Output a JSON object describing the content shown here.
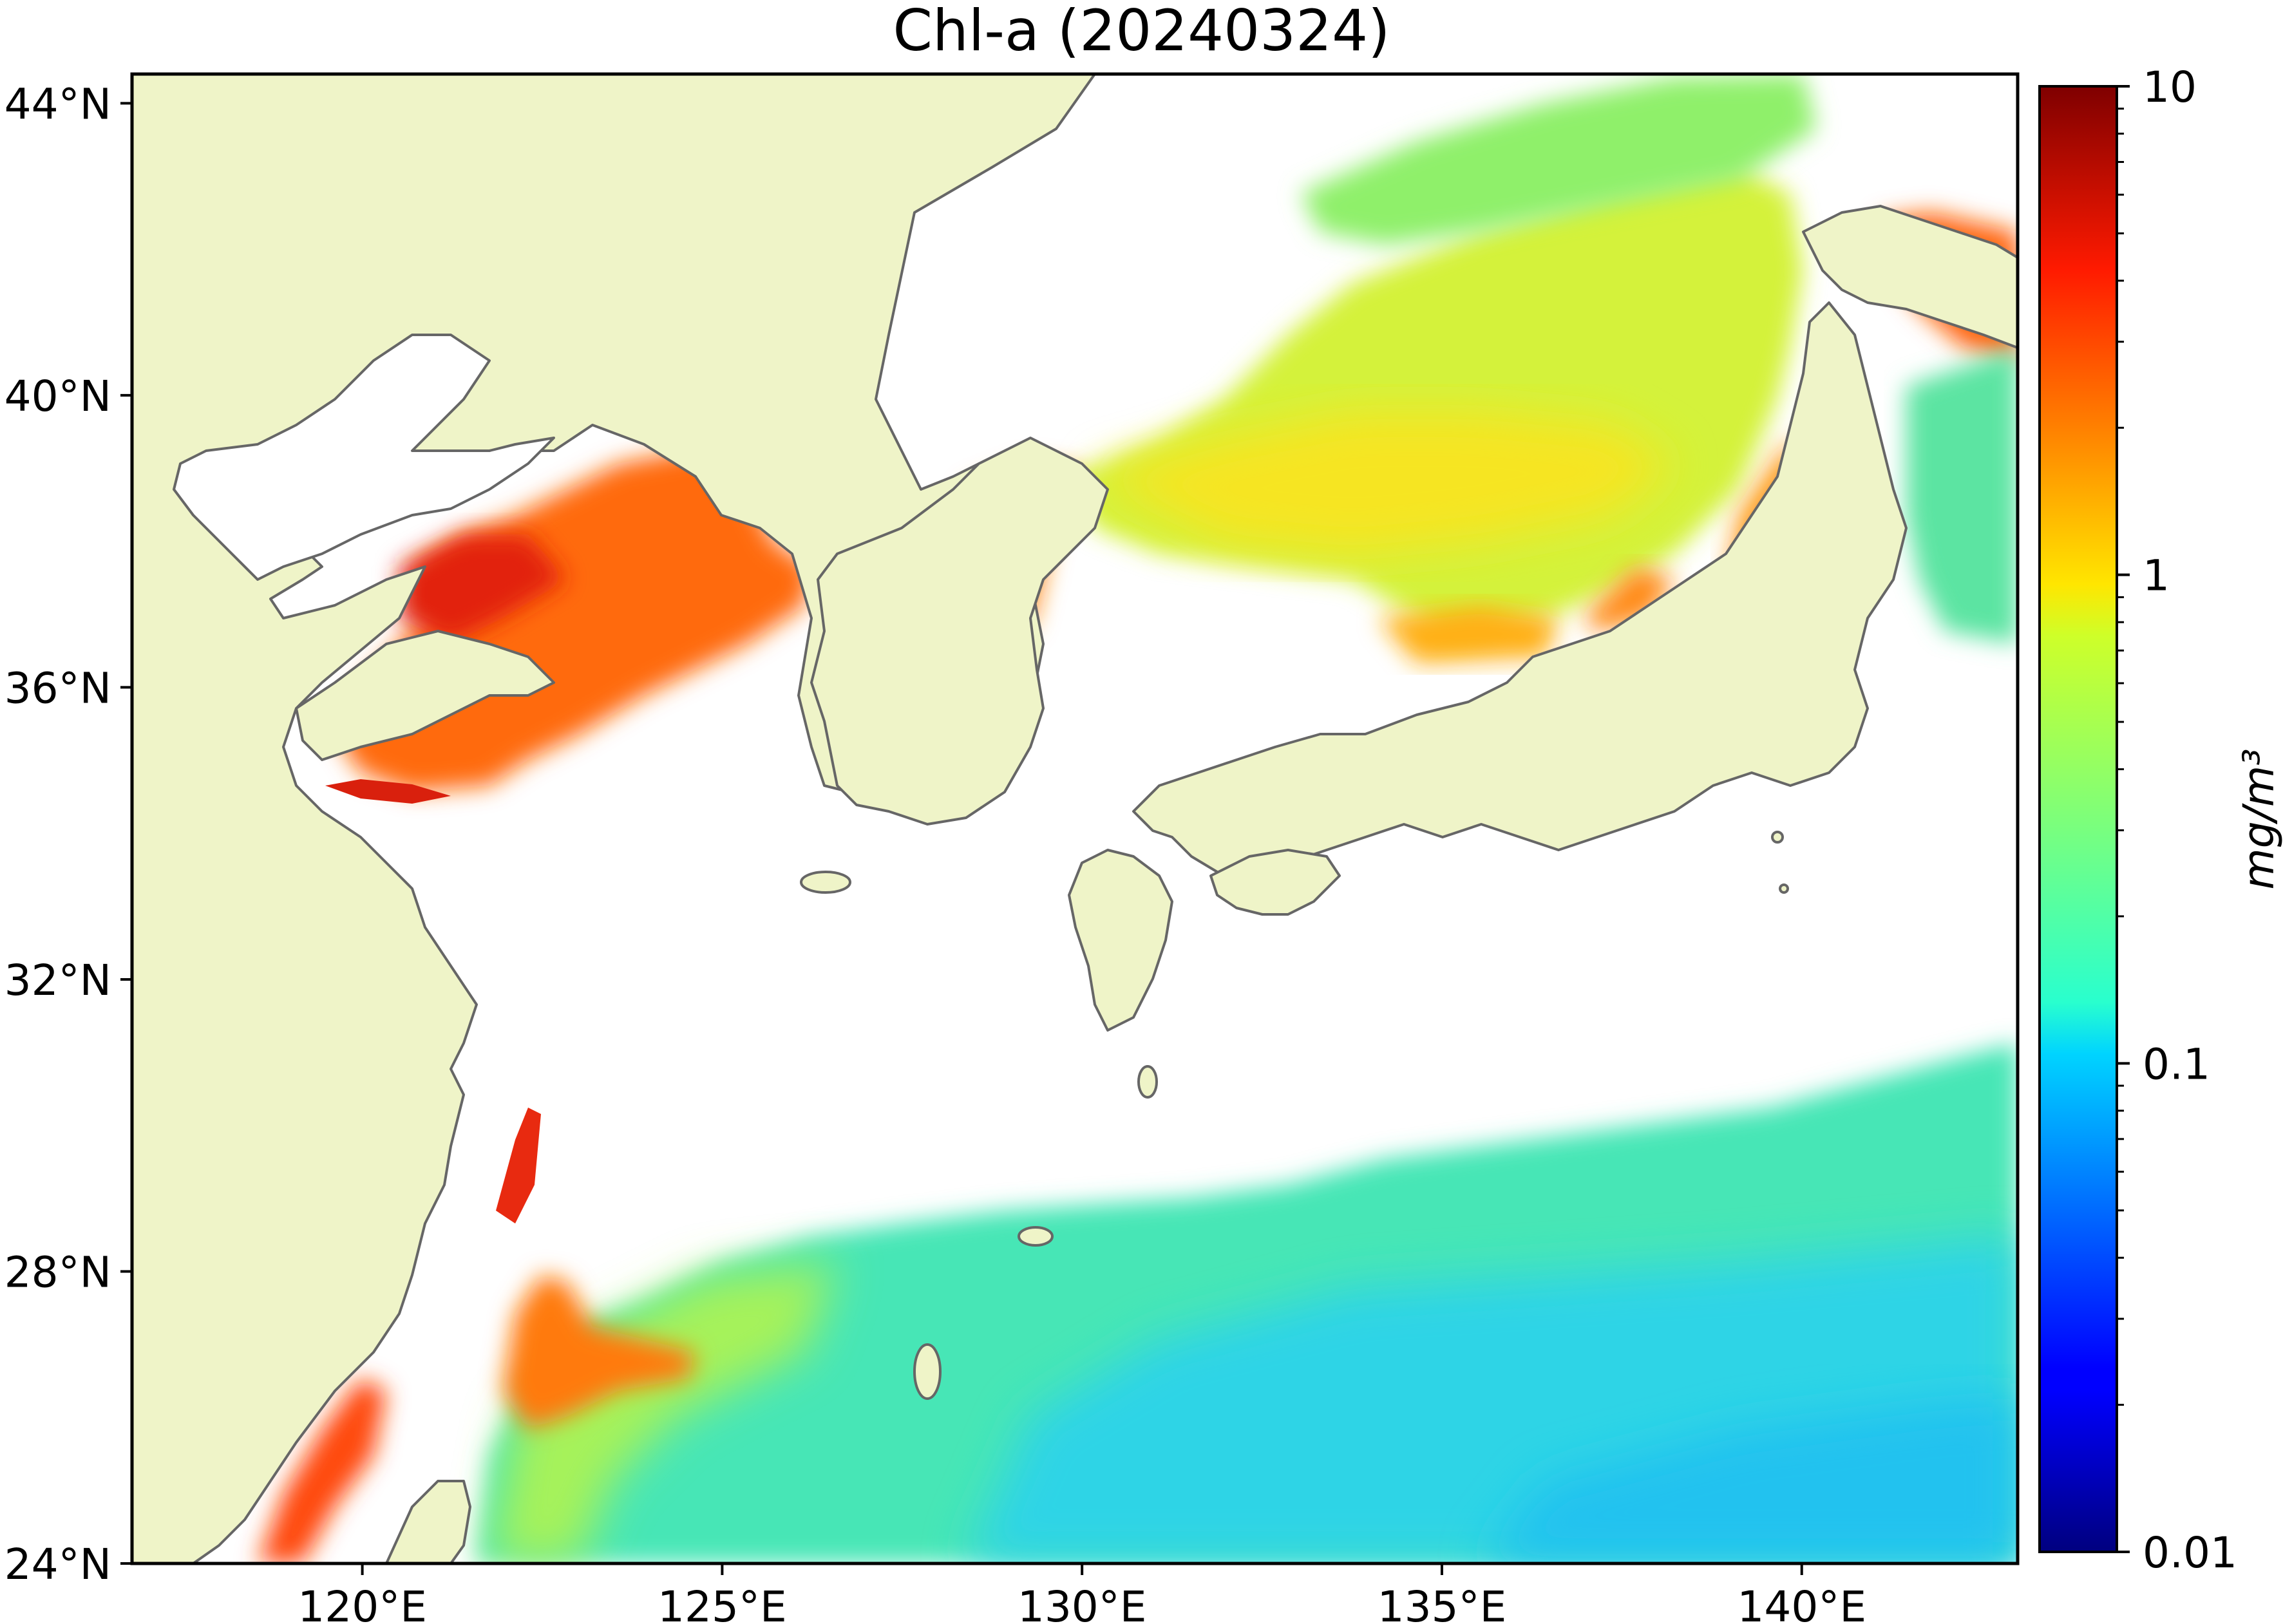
{
  "title": "Chl-a (20240324)",
  "map": {
    "extent": {
      "lon_min": 116.8,
      "lon_max": 143.0,
      "lat_min": 24.0,
      "lat_max": 44.4
    },
    "x_ticks": [
      {
        "lon": 120,
        "label": "120°E"
      },
      {
        "lon": 125,
        "label": "125°E"
      },
      {
        "lon": 130,
        "label": "130°E"
      },
      {
        "lon": 135,
        "label": "135°E"
      },
      {
        "lon": 140,
        "label": "140°E"
      }
    ],
    "y_ticks": [
      {
        "lat": 44,
        "label": "44°N"
      },
      {
        "lat": 40,
        "label": "40°N"
      },
      {
        "lat": 36,
        "label": "36°N"
      },
      {
        "lat": 32,
        "label": "32°N"
      },
      {
        "lat": 28,
        "label": "28°N"
      },
      {
        "lat": 24,
        "label": "24°N"
      }
    ],
    "colors": {
      "land": "#eff4c8",
      "coast": "#666666",
      "no_data": "#ffffff"
    }
  },
  "colorbar": {
    "scale": "log",
    "min": 0.01,
    "max": 10,
    "colormap": "jet",
    "ticks": [
      {
        "value": 10,
        "label": "10"
      },
      {
        "value": 1,
        "label": "1"
      },
      {
        "value": 0.1,
        "label": "0.1"
      },
      {
        "value": 0.01,
        "label": "0.01"
      }
    ],
    "unit": "mg/m³"
  }
}
